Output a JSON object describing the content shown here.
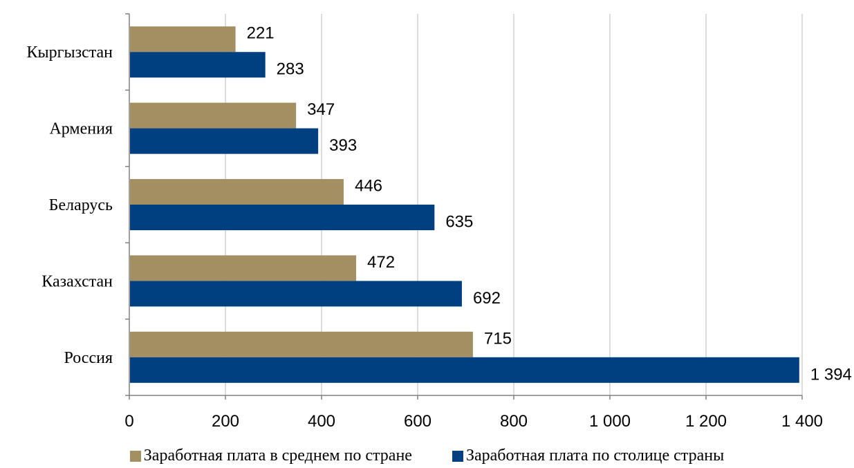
{
  "chart_data": {
    "type": "bar",
    "orientation": "horizontal",
    "categories": [
      "Кыргызстан",
      "Армения",
      "Беларусь",
      "Казахстан",
      "Россия"
    ],
    "series": [
      {
        "name": "Заработная плата в среднем по стране",
        "color": "#A39062",
        "values": [
          221,
          347,
          446,
          472,
          715
        ],
        "labels": [
          "221",
          "347",
          "446",
          "472",
          "715"
        ]
      },
      {
        "name": "Заработная плата по столице страны",
        "color": "#004080",
        "values": [
          283,
          393,
          635,
          692,
          1394
        ],
        "labels": [
          "283",
          "393",
          "635",
          "692",
          "1 394"
        ]
      }
    ],
    "xlim": [
      0,
      1400
    ],
    "xticks": [
      0,
      200,
      400,
      600,
      800,
      1000,
      1200,
      1400
    ],
    "xtick_labels": [
      "0",
      "200",
      "400",
      "600",
      "800",
      "1 000",
      "1 200",
      "1 400"
    ],
    "grid": "vertical",
    "legend_position": "bottom"
  }
}
